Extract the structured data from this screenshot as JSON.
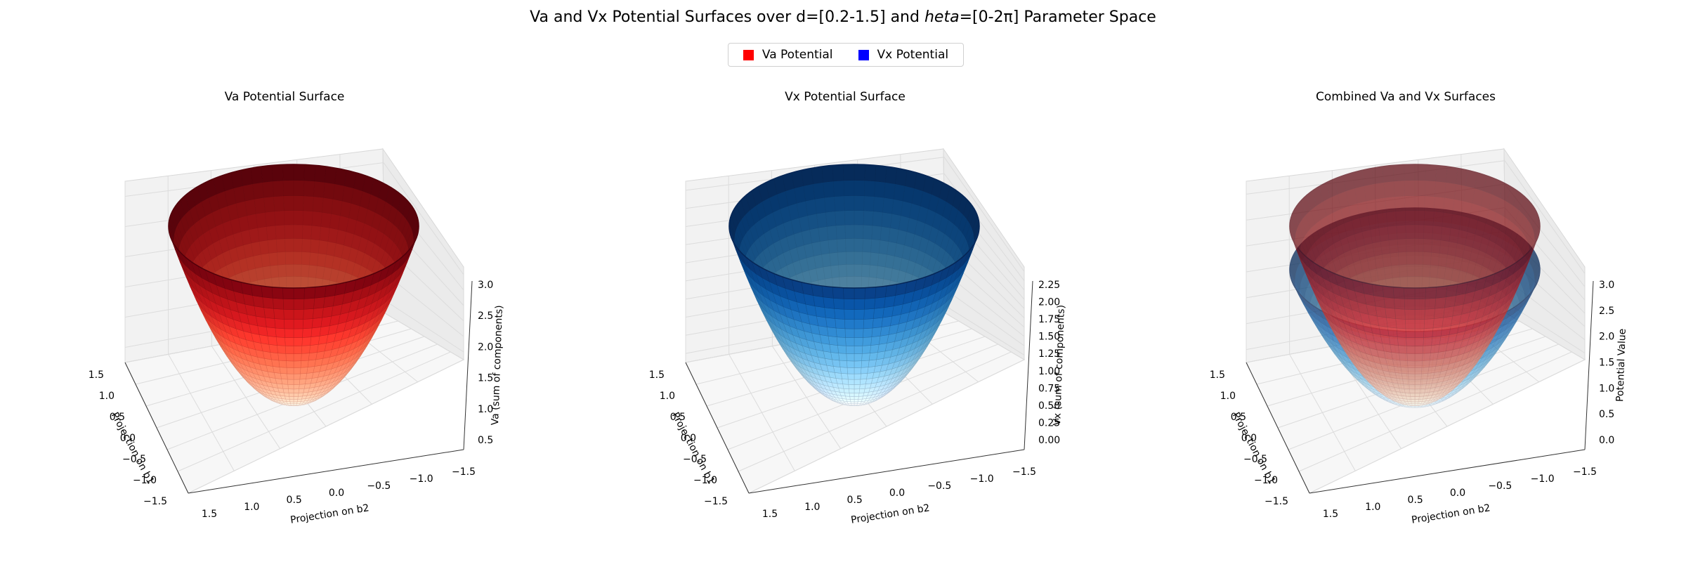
{
  "figure": {
    "title": "Va and Vx Potential Surfaces over d=[0.2-1.5] and heta=[0-2π] Parameter Space",
    "title_prefix": "Va and Vx Potential Surfaces over d=[0.2-1.5] and ",
    "title_italic": "heta",
    "title_suffix": "=[0-2π] Parameter Space"
  },
  "legend": {
    "placement": "top-center",
    "items": [
      {
        "label": "Va Potential",
        "color": "#ff0000"
      },
      {
        "label": "Vx Potential",
        "color": "#0000ff"
      }
    ]
  },
  "colors": {
    "va_top": "#67000d",
    "va_bottom": "#fff5f0",
    "vx_top": "#08306b",
    "vx_bottom": "#f7fbff"
  },
  "chart_data": [
    {
      "type": "surface3d",
      "title": "Va Potential Surface",
      "xlabel": "Projection on b1",
      "ylabel": "Projection on b2",
      "zlabel": "Va (sum of components)",
      "x_ticks": [
        "1.5",
        "1.0",
        "0.5",
        "0.0",
        "−0.5",
        "−1.0",
        "−1.5"
      ],
      "y_ticks": [
        "1.5",
        "1.0",
        "0.5",
        "0.0",
        "−0.5",
        "−1.0",
        "−1.5"
      ],
      "z_ticks": [
        "0.5",
        "1.0",
        "1.5",
        "2.0",
        "2.5",
        "3.0"
      ],
      "zlim": [
        0.2,
        3.1
      ],
      "colormap": "Reds",
      "surface": "paraboloid over radius d in [0.2, 1.5], angle in [0, 2π]",
      "r_range": [
        0.2,
        1.5
      ],
      "z_range": [
        0.2,
        3.0
      ]
    },
    {
      "type": "surface3d",
      "title": "Vx Potential Surface",
      "xlabel": "Projection on b1",
      "ylabel": "Projection on b2",
      "zlabel": "Vx (sum of components)",
      "x_ticks": [
        "1.5",
        "1.0",
        "0.5",
        "0.0",
        "−0.5",
        "−1.0",
        "−1.5"
      ],
      "y_ticks": [
        "1.5",
        "1.0",
        "0.5",
        "0.0",
        "−0.5",
        "−1.0",
        "−1.5"
      ],
      "z_ticks": [
        "0.00",
        "0.25",
        "0.50",
        "0.75",
        "1.00",
        "1.25",
        "1.50",
        "1.75",
        "2.00",
        "2.25"
      ],
      "zlim": [
        0.0,
        2.35
      ],
      "colormap": "Blues",
      "surface": "paraboloid over radius d in [0.2, 1.5], angle in [0, 2π]",
      "r_range": [
        0.2,
        1.5
      ],
      "z_range": [
        0.0,
        2.25
      ]
    },
    {
      "type": "surface3d",
      "title": "Combined Va and Vx Surfaces",
      "xlabel": "Projection on b1",
      "ylabel": "Projection on b2",
      "zlabel": "Potential Value",
      "x_ticks": [
        "1.5",
        "1.0",
        "0.5",
        "0.0",
        "−0.5",
        "−1.0",
        "−1.5"
      ],
      "y_ticks": [
        "1.5",
        "1.0",
        "0.5",
        "0.0",
        "−0.5",
        "−1.0",
        "−1.5"
      ],
      "z_ticks": [
        "0.0",
        "0.5",
        "1.0",
        "1.5",
        "2.0",
        "2.5",
        "3.0"
      ],
      "zlim": [
        0.0,
        3.1
      ],
      "series": [
        {
          "name": "Va Potential",
          "colormap": "Reds",
          "z_range": [
            0.2,
            3.0
          ],
          "alpha": 0.7
        },
        {
          "name": "Vx Potential",
          "colormap": "Blues",
          "z_range": [
            0.0,
            2.25
          ],
          "alpha": 0.7
        }
      ],
      "r_range": [
        0.2,
        1.5
      ]
    }
  ]
}
